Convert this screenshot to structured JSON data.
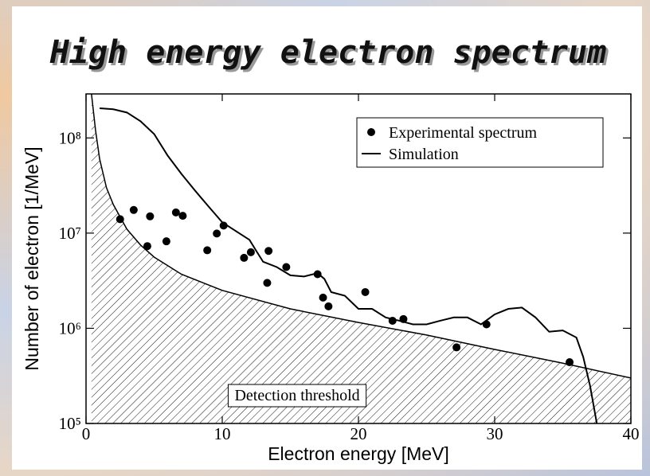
{
  "chart_data": {
    "type": "scatter",
    "title": "High energy electron spectrum",
    "xlabel": "Electron energy [MeV]",
    "ylabel": "Number of electron [1/MeV]",
    "xlim": [
      0,
      40
    ],
    "xticks": [
      0,
      10,
      20,
      30,
      40
    ],
    "ylim": [
      100000,
      290000000
    ],
    "yscale": "log",
    "yticks": [
      {
        "value": 100000,
        "label": "10⁵"
      },
      {
        "value": 1000000,
        "label": "10⁶"
      },
      {
        "value": 10000000,
        "label": "10⁷"
      },
      {
        "value": 100000000,
        "label": "10⁸"
      }
    ],
    "legend": "upper right",
    "series": [
      {
        "name": "Experimental spectrum",
        "type": "scatter",
        "color": "#000000",
        "x": [
          2.5,
          3.5,
          4.5,
          4.7,
          5.9,
          6.6,
          7.1,
          8.9,
          9.6,
          10.1,
          11.6,
          12.1,
          13.3,
          13.4,
          14.7,
          17.0,
          17.4,
          17.8,
          20.5,
          22.5,
          23.3,
          27.2,
          29.4,
          35.5
        ],
        "values": [
          14000000,
          17500000,
          7300000,
          15000000,
          8200000,
          16500000,
          15200000,
          6600000,
          9900000,
          12000000,
          5500000,
          6300000,
          3000000,
          6500000,
          4400000,
          3700000,
          2100000,
          1700000,
          2400000,
          1200000,
          1250000,
          630000,
          1100000,
          440000
        ]
      },
      {
        "name": "Simulation",
        "type": "line",
        "color": "#000000",
        "x": [
          1,
          2,
          3,
          4,
          5,
          6,
          7,
          8,
          9,
          10,
          11,
          12,
          12.5,
          13,
          14,
          15,
          16,
          17,
          17.5,
          18,
          19,
          20,
          21,
          22,
          23,
          24,
          25,
          26,
          27,
          28,
          29,
          30,
          31,
          32,
          33,
          34,
          35,
          36,
          36.5,
          37,
          37.5
        ],
        "values": [
          205000000,
          200000000,
          185000000,
          150000000,
          110000000,
          65000000,
          42000000,
          28000000,
          19000000,
          13000000,
          10500000,
          8500000,
          6500000,
          5000000,
          4400000,
          3600000,
          3500000,
          3800000,
          3300000,
          2400000,
          2200000,
          1600000,
          1600000,
          1300000,
          1200000,
          1100000,
          1100000,
          1200000,
          1300000,
          1300000,
          1100000,
          1400000,
          1600000,
          1650000,
          1300000,
          920000,
          950000,
          800000,
          500000,
          250000,
          100000
        ]
      }
    ],
    "threshold": {
      "color": "#000000",
      "x": [
        0.4,
        0.7,
        1,
        1.5,
        2,
        3,
        4,
        5,
        7,
        10,
        15,
        20,
        25,
        30,
        35,
        40
      ],
      "values": [
        290000000,
        120000000,
        60000000,
        30000000,
        20000000,
        11000000,
        7500000,
        5600000,
        3700000,
        2500000,
        1600000,
        1150000,
        850000,
        600000,
        430000,
        300000
      ]
    },
    "annotations": [
      {
        "text": "Detection threshold",
        "x": 15.5,
        "y": 200000
      }
    ]
  }
}
